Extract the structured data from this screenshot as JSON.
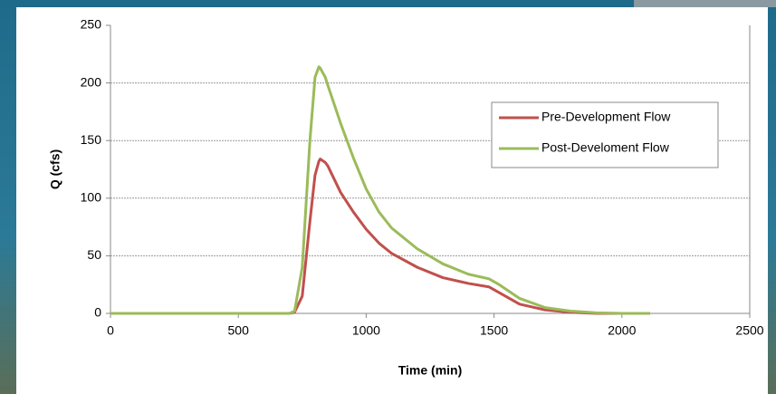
{
  "chart_data": {
    "type": "line",
    "x_label": "Time (min)",
    "y_label": "Q (cfs)",
    "x": [
      0,
      500,
      700,
      720,
      750,
      780,
      800,
      815,
      820,
      840,
      850,
      900,
      950,
      1000,
      1050,
      1100,
      1200,
      1300,
      1400,
      1480,
      1520,
      1600,
      1700,
      1800,
      1900,
      2000,
      2110
    ],
    "series": [
      {
        "name": "Pre-Development Flow",
        "color": "#c0504d",
        "values": [
          0,
          0,
          0,
          1,
          15,
          80,
          120,
          132,
          134,
          131,
          128,
          105,
          88,
          73,
          61,
          52,
          40,
          31,
          26,
          23,
          18,
          8,
          3,
          1,
          0,
          0,
          0
        ]
      },
      {
        "name": "Post-Develoment Flow",
        "color": "#9bbb59",
        "values": [
          0,
          0,
          0,
          2,
          40,
          150,
          205,
          214,
          213,
          205,
          198,
          165,
          135,
          108,
          88,
          74,
          56,
          43,
          34,
          30,
          25,
          13,
          5,
          2,
          0.5,
          0,
          0
        ]
      }
    ],
    "xlim": [
      0,
      2500
    ],
    "xticks": [
      0,
      500,
      1000,
      1500,
      2000,
      2500
    ],
    "ylim": [
      0,
      250
    ],
    "yticks": [
      0,
      50,
      100,
      150,
      200,
      250
    ],
    "grid": true,
    "legend": "upper-right"
  }
}
